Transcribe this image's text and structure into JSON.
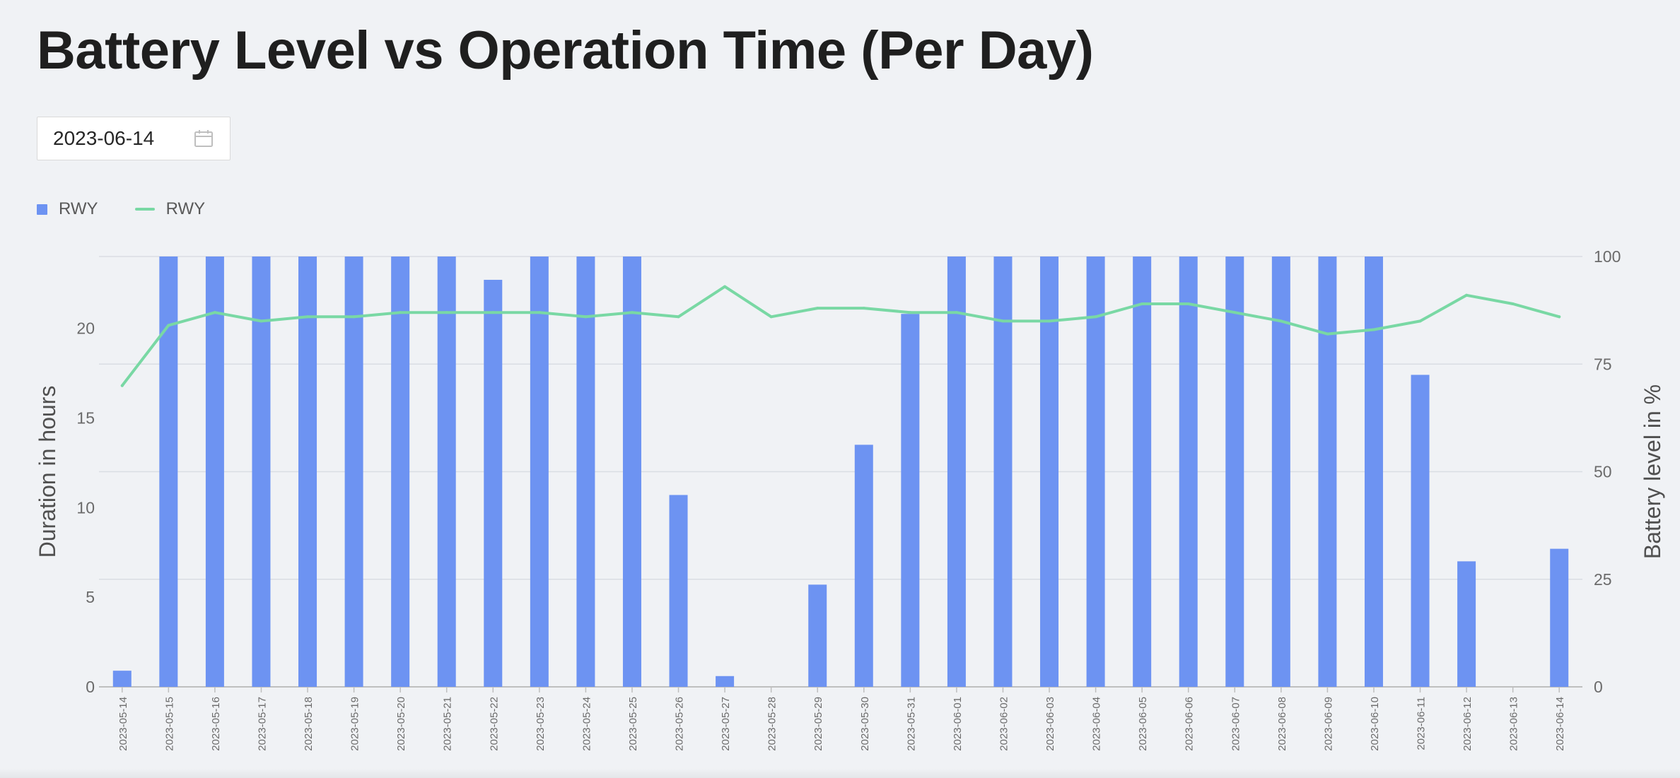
{
  "page": {
    "title": "Battery Level vs Operation Time (Per Day)",
    "date_value": "2023-06-14",
    "date_icon": "calendar-icon"
  },
  "colors": {
    "bar": "#6d93f2",
    "line": "#79d8a4",
    "grid": "#dadde3",
    "axis_text": "#6b6b6b"
  },
  "chart_data": {
    "type": "bar",
    "title": "",
    "categories": [
      "2023-05-14",
      "2023-05-15",
      "2023-05-16",
      "2023-05-17",
      "2023-05-18",
      "2023-05-19",
      "2023-05-20",
      "2023-05-21",
      "2023-05-22",
      "2023-05-23",
      "2023-05-24",
      "2023-05-25",
      "2023-05-26",
      "2023-05-27",
      "2023-05-28",
      "2023-05-29",
      "2023-05-30",
      "2023-05-31",
      "2023-06-01",
      "2023-06-02",
      "2023-06-03",
      "2023-06-04",
      "2023-06-05",
      "2023-06-06",
      "2023-06-07",
      "2023-06-08",
      "2023-06-09",
      "2023-06-10",
      "2023-06-11",
      "2023-06-12",
      "2023-06-13",
      "2023-06-14"
    ],
    "series": [
      {
        "name": "RWY",
        "type": "bar",
        "axis": "left",
        "values": [
          0.9,
          24,
          24,
          24,
          24,
          24,
          24,
          24,
          22.7,
          24,
          24,
          24,
          10.7,
          0.6,
          0,
          5.7,
          13.5,
          20.8,
          24,
          24,
          24,
          24,
          24,
          24,
          24,
          24,
          24,
          24,
          17.4,
          7.0,
          0,
          7.7
        ]
      },
      {
        "name": "RWY",
        "type": "line",
        "axis": "right",
        "values": [
          70,
          84,
          87,
          85,
          86,
          86,
          87,
          87,
          87,
          87,
          86,
          87,
          86,
          93,
          86,
          88,
          88,
          87,
          87,
          85,
          85,
          86,
          89,
          89,
          87,
          85,
          82,
          83,
          85,
          91,
          89,
          86
        ]
      }
    ],
    "ylabel": "Duration in hours",
    "ylim": [
      0,
      24
    ],
    "yticks": [
      0,
      5,
      10,
      15,
      20
    ],
    "y2label": "Battery level in %",
    "y2lim": [
      0,
      100
    ],
    "y2ticks": [
      0,
      25,
      50,
      75,
      100
    ],
    "legend": "top-left",
    "grid": true
  }
}
